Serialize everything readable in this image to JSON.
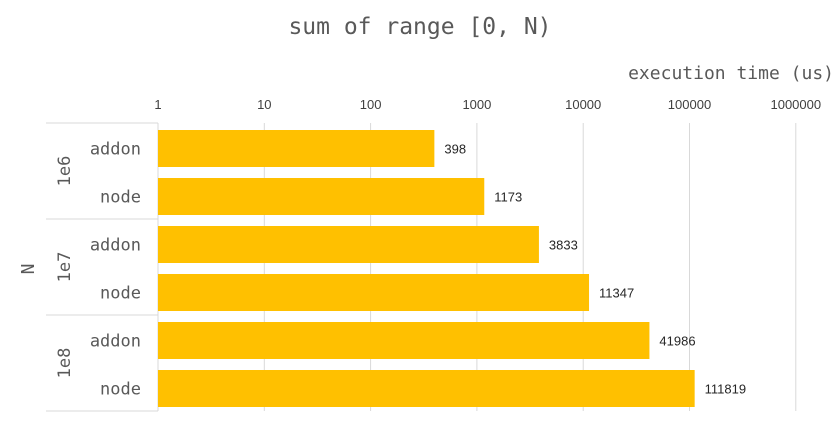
{
  "chart_data": {
    "type": "bar",
    "orientation": "horizontal",
    "title": "sum of range [0, N)",
    "xlabel": "execution time (us)",
    "ylabel": "N",
    "xscale": "log10",
    "xlim": [
      1,
      1000000
    ],
    "grid": true,
    "legend": "none",
    "x_ticks": [
      "1",
      "10",
      "100",
      "1000",
      "10000",
      "100000",
      "1000000"
    ],
    "x_tick_values": [
      1,
      10,
      100,
      1000,
      10000,
      100000,
      1000000
    ],
    "groups": [
      {
        "label": "1e6",
        "bars": [
          {
            "category": "addon",
            "value": 398,
            "data_label": "398"
          },
          {
            "category": "node",
            "value": 1173,
            "data_label": "1173"
          }
        ]
      },
      {
        "label": "1e7",
        "bars": [
          {
            "category": "addon",
            "value": 3833,
            "data_label": "3833"
          },
          {
            "category": "node",
            "value": 11347,
            "data_label": "11347"
          }
        ]
      },
      {
        "label": "1e8",
        "bars": [
          {
            "category": "addon",
            "value": 41986,
            "data_label": "41986"
          },
          {
            "category": "node",
            "value": 111819,
            "data_label": "111819"
          }
        ]
      }
    ],
    "colors": {
      "bar": "#FFC000",
      "grid": "#D9D9D9",
      "text": "#595959",
      "data_label": "#262626"
    }
  }
}
